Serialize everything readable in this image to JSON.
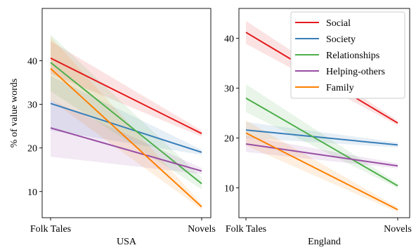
{
  "chart_data": [
    {
      "type": "line",
      "xlabel": "USA",
      "ylabel": "% of value words",
      "categories": [
        "Folk Tales",
        "Novels"
      ],
      "yticks": [
        10,
        20,
        30,
        40
      ],
      "ylim": [
        4,
        52
      ],
      "series": [
        {
          "name": "Social",
          "color": "#e41a1c",
          "values": [
            40.6,
            23.3
          ],
          "ci_low": [
            37.0,
            22.6
          ],
          "ci_high": [
            44.5,
            24.0
          ]
        },
        {
          "name": "Society",
          "color": "#377eb8",
          "values": [
            30.2,
            19.0
          ],
          "ci_low": [
            24.0,
            18.4
          ],
          "ci_high": [
            36.5,
            19.6
          ]
        },
        {
          "name": "Relationships",
          "color": "#4daf4a",
          "values": [
            39.6,
            11.8
          ],
          "ci_low": [
            33.0,
            10.5
          ],
          "ci_high": [
            46.0,
            13.2
          ]
        },
        {
          "name": "Helping-others",
          "color": "#984ea3",
          "values": [
            24.6,
            14.7
          ],
          "ci_low": [
            18.0,
            14.0
          ],
          "ci_high": [
            31.0,
            15.4
          ]
        },
        {
          "name": "Family",
          "color": "#ff7f00",
          "values": [
            38.2,
            6.5
          ],
          "ci_low": [
            31.0,
            5.9
          ],
          "ci_high": [
            45.5,
            7.1
          ]
        }
      ]
    },
    {
      "type": "line",
      "xlabel": "England",
      "ylabel": "",
      "categories": [
        "Folk Tales",
        "Novels"
      ],
      "yticks": [
        10,
        20,
        30,
        40
      ],
      "ylim": [
        4,
        46
      ],
      "legend_position": "top-right",
      "series": [
        {
          "name": "Social",
          "color": "#e41a1c",
          "values": [
            41.2,
            23.0
          ],
          "ci_low": [
            38.9,
            22.5
          ],
          "ci_high": [
            43.5,
            23.5
          ]
        },
        {
          "name": "Society",
          "color": "#377eb8",
          "values": [
            21.6,
            18.6
          ],
          "ci_low": [
            20.0,
            18.1
          ],
          "ci_high": [
            23.2,
            19.1
          ]
        },
        {
          "name": "Relationships",
          "color": "#4daf4a",
          "values": [
            28.0,
            10.4
          ],
          "ci_low": [
            25.2,
            9.9
          ],
          "ci_high": [
            30.8,
            10.9
          ]
        },
        {
          "name": "Helping-others",
          "color": "#984ea3",
          "values": [
            18.8,
            14.4
          ],
          "ci_low": [
            17.2,
            13.9
          ],
          "ci_high": [
            20.4,
            14.9
          ]
        },
        {
          "name": "Family",
          "color": "#ff7f00",
          "values": [
            21.0,
            5.6
          ],
          "ci_low": [
            18.5,
            5.1
          ],
          "ci_high": [
            23.5,
            6.1
          ]
        }
      ]
    }
  ]
}
